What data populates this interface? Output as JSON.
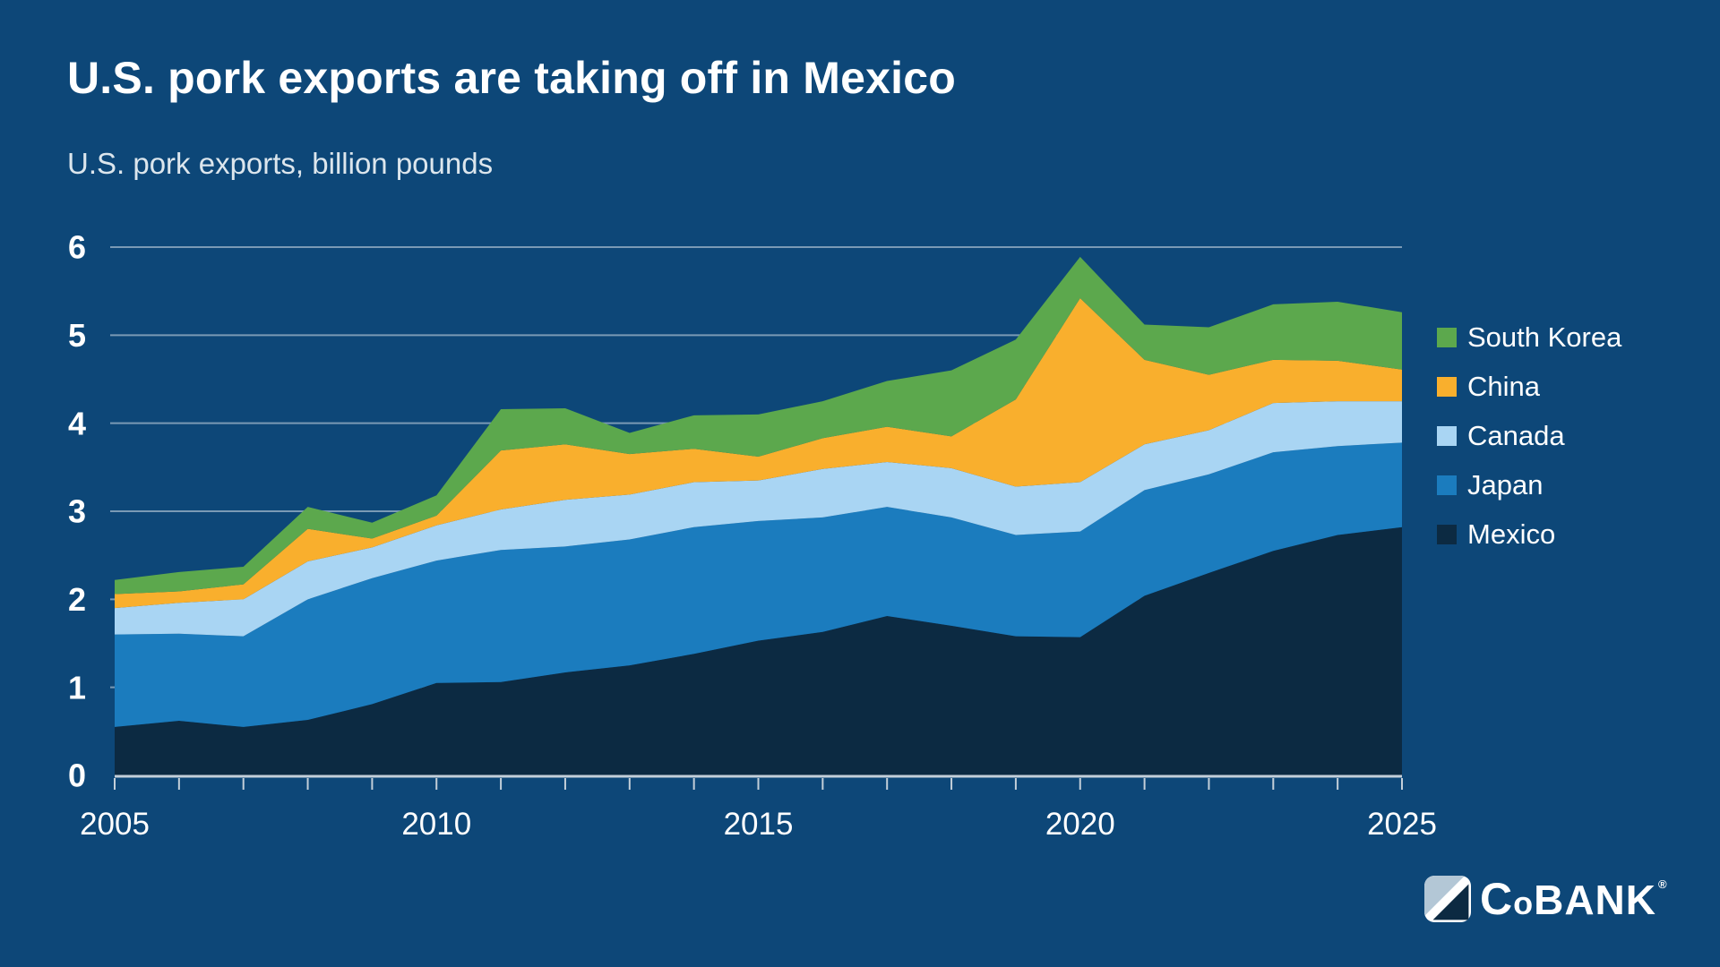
{
  "header": {
    "title": "U.S. pork exports are taking off in Mexico",
    "subtitle": "U.S. pork exports, billion pounds"
  },
  "colors": {
    "background": "#0D4778",
    "grid": "rgba(255,255,255,0.45)",
    "axis_line": "#C3CFD9",
    "tick": "#C3CFD9",
    "axis_text": "#FFFFFF",
    "title_text": "#FFFFFF",
    "subtitle_text": "#DCE6ED"
  },
  "chart_data": {
    "type": "area",
    "stacked": true,
    "title": "U.S. pork exports are taking off in Mexico",
    "ylabel": "U.S. pork exports, billion pounds",
    "xlabel": "",
    "grid": "horizontal",
    "legend_position": "right",
    "x": [
      2005,
      2006,
      2007,
      2008,
      2009,
      2010,
      2011,
      2012,
      2013,
      2014,
      2015,
      2016,
      2017,
      2018,
      2019,
      2020,
      2021,
      2022,
      2023,
      2024,
      2025
    ],
    "series": [
      {
        "name": "Mexico",
        "color": "#0C2A42",
        "values": [
          0.55,
          0.62,
          0.55,
          0.63,
          0.81,
          1.05,
          1.06,
          1.17,
          1.25,
          1.38,
          1.53,
          1.63,
          1.81,
          1.7,
          1.58,
          1.57,
          2.04,
          2.3,
          2.55,
          2.73,
          2.82
        ]
      },
      {
        "name": "Japan",
        "color": "#1B7CBE",
        "values": [
          1.05,
          0.99,
          1.03,
          1.37,
          1.43,
          1.39,
          1.5,
          1.43,
          1.43,
          1.44,
          1.36,
          1.3,
          1.24,
          1.23,
          1.15,
          1.2,
          1.2,
          1.12,
          1.12,
          1.01,
          0.96
        ]
      },
      {
        "name": "Canada",
        "color": "#A9D5F3",
        "values": [
          0.3,
          0.35,
          0.42,
          0.43,
          0.35,
          0.4,
          0.46,
          0.53,
          0.51,
          0.51,
          0.46,
          0.55,
          0.51,
          0.56,
          0.55,
          0.56,
          0.52,
          0.5,
          0.56,
          0.51,
          0.47
        ]
      },
      {
        "name": "China",
        "color": "#F9AF2D",
        "values": [
          0.16,
          0.13,
          0.17,
          0.37,
          0.1,
          0.11,
          0.67,
          0.63,
          0.46,
          0.38,
          0.27,
          0.35,
          0.4,
          0.36,
          0.99,
          2.09,
          0.96,
          0.63,
          0.49,
          0.46,
          0.36
        ]
      },
      {
        "name": "South Korea",
        "color": "#5CA84D",
        "values": [
          0.16,
          0.22,
          0.2,
          0.25,
          0.18,
          0.23,
          0.47,
          0.41,
          0.24,
          0.38,
          0.48,
          0.42,
          0.52,
          0.75,
          0.68,
          0.47,
          0.4,
          0.54,
          0.63,
          0.67,
          0.65
        ]
      }
    ],
    "ylim": [
      0,
      6
    ],
    "yticks": [
      "0",
      "1",
      "2",
      "3",
      "4",
      "5",
      "6"
    ],
    "xtick_labels": [
      "2005",
      "2010",
      "2015",
      "2020",
      "2025"
    ],
    "legend_order": [
      "South Korea",
      "China",
      "Canada",
      "Japan",
      "Mexico"
    ]
  },
  "branding": {
    "logo_c": "C",
    "logo_o": "o",
    "logo_bank": "BANK",
    "registered": "®"
  }
}
